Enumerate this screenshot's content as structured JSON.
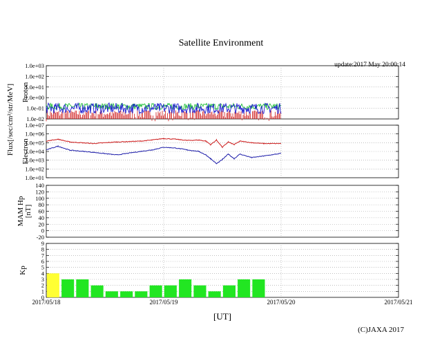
{
  "title": "Satellite Environment",
  "update": "update:2017 May 20:00:14",
  "copyright": "(C)JAXA 2017",
  "xaxis_label": "[UT]",
  "shared_ylabel": "Flux[/sec/cm²/str/MeV]",
  "colors": {
    "proton_green": "#1fbf3a",
    "proton_blue": "#1a1ad0",
    "proton_red": "#d01818",
    "electron_red": "#cc1a1a",
    "electron_blue": "#1a1aa8",
    "kp_yellow": "#ffff33",
    "kp_green": "#22e622",
    "grid": "#999999"
  },
  "chart_data": [
    {
      "type": "line",
      "id": "proton",
      "ylabel": "Proton",
      "log_scale": true,
      "ylim": [
        0.01,
        1000
      ],
      "ytick_labels": [
        "1.0e+03",
        "1.0e+02",
        "1.0e+01",
        "1.0e+00",
        "1.0e-01",
        "1.0e-02"
      ],
      "x": [
        "2017/05/18",
        "2017/05/19",
        "2017/05/20",
        "2017/05/21"
      ],
      "xlim": [
        "2017/05/18 00:00",
        "2017/05/21 00:00"
      ],
      "series": [
        {
          "color": "#1fbf3a",
          "approx_level": 0.15
        },
        {
          "color": "#1a1ad0",
          "approx_level": 0.1
        },
        {
          "color": "#d01818",
          "approx_level": 0.02
        }
      ]
    },
    {
      "type": "line",
      "id": "electron",
      "ylabel": "Electron",
      "log_scale": true,
      "ylim": [
        10,
        10000000
      ],
      "ytick_labels": [
        "1.0e+07",
        "1.0e+06",
        "1.0e+05",
        "1.0e+04",
        "1.0e+03",
        "1.0e+02",
        "1.0e+01"
      ],
      "series": [
        {
          "color": "#cc1a1a",
          "points": [
            [
              0.0,
              150000
            ],
            [
              0.1,
              250000
            ],
            [
              0.2,
              120000
            ],
            [
              0.4,
              80000
            ],
            [
              0.6,
              120000
            ],
            [
              0.8,
              150000
            ],
            [
              0.9,
              200000
            ],
            [
              1.0,
              300000
            ],
            [
              1.1,
              250000
            ],
            [
              1.2,
              180000
            ],
            [
              1.3,
              200000
            ],
            [
              1.36,
              150000
            ],
            [
              1.4,
              60000
            ],
            [
              1.45,
              200000
            ],
            [
              1.5,
              30000
            ],
            [
              1.55,
              120000
            ],
            [
              1.6,
              60000
            ],
            [
              1.65,
              150000
            ],
            [
              1.75,
              100000
            ],
            [
              1.85,
              80000
            ],
            [
              2.0,
              80000
            ]
          ]
        },
        {
          "color": "#1a1aa8",
          "points": [
            [
              0.0,
              15000
            ],
            [
              0.1,
              40000
            ],
            [
              0.2,
              14000
            ],
            [
              0.4,
              8000
            ],
            [
              0.6,
              4000
            ],
            [
              0.8,
              10000
            ],
            [
              0.9,
              15000
            ],
            [
              1.0,
              30000
            ],
            [
              1.1,
              25000
            ],
            [
              1.2,
              15000
            ],
            [
              1.3,
              10000
            ],
            [
              1.36,
              4000
            ],
            [
              1.4,
              1500
            ],
            [
              1.45,
              400
            ],
            [
              1.5,
              1200
            ],
            [
              1.55,
              5000
            ],
            [
              1.6,
              1500
            ],
            [
              1.65,
              5000
            ],
            [
              1.75,
              2000
            ],
            [
              1.85,
              3000
            ],
            [
              2.0,
              6000
            ]
          ]
        }
      ]
    },
    {
      "type": "line",
      "id": "mam_hp",
      "ylabel": "MAM Hp",
      "ylabel2": "[nT]",
      "ylim": [
        -20,
        140
      ],
      "ytick_labels": [
        "140",
        "120",
        "100",
        "80",
        "60",
        "40",
        "20",
        "0",
        "-20"
      ],
      "series": []
    },
    {
      "type": "bar",
      "id": "kp",
      "ylabel": "Kp",
      "ylim": [
        0,
        9
      ],
      "ytick_labels": [
        "9",
        "8",
        "7",
        "6",
        "5",
        "4",
        "3",
        "2",
        "1",
        "0"
      ],
      "bars": [
        {
          "start": 0.0,
          "value": 4.0,
          "color": "#ffff33"
        },
        {
          "start": 0.125,
          "value": 3.0,
          "color": "#22e622"
        },
        {
          "start": 0.25,
          "value": 3.0,
          "color": "#22e622"
        },
        {
          "start": 0.375,
          "value": 2.0,
          "color": "#22e622"
        },
        {
          "start": 0.5,
          "value": 1.0,
          "color": "#22e622"
        },
        {
          "start": 0.625,
          "value": 1.0,
          "color": "#22e622"
        },
        {
          "start": 0.75,
          "value": 1.0,
          "color": "#22e622"
        },
        {
          "start": 0.875,
          "value": 2.0,
          "color": "#22e622"
        },
        {
          "start": 1.0,
          "value": 2.0,
          "color": "#22e622"
        },
        {
          "start": 1.125,
          "value": 3.0,
          "color": "#22e622"
        },
        {
          "start": 1.25,
          "value": 2.0,
          "color": "#22e622"
        },
        {
          "start": 1.375,
          "value": 1.0,
          "color": "#22e622"
        },
        {
          "start": 1.5,
          "value": 2.0,
          "color": "#22e622"
        },
        {
          "start": 1.625,
          "value": 3.0,
          "color": "#22e622"
        },
        {
          "start": 1.75,
          "value": 3.0,
          "color": "#22e622"
        }
      ]
    }
  ],
  "xtick_labels": [
    "2017/05/18",
    "2017/05/19",
    "2017/05/20",
    "2017/05/21"
  ]
}
